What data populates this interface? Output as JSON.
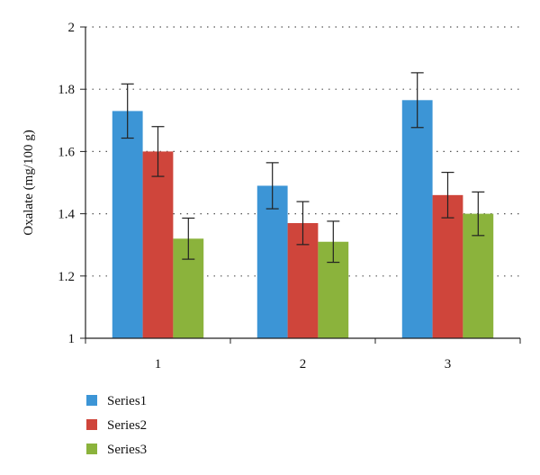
{
  "chart_data": {
    "type": "bar",
    "title": "",
    "xlabel": "",
    "ylabel": "Oxalate (mg/100 g)",
    "ylim": [
      1,
      2
    ],
    "yticks": [
      "1",
      "1.2",
      "1.4",
      "1.6",
      "1.8",
      "2"
    ],
    "categories": [
      "1",
      "2",
      "3"
    ],
    "grid": "horizontal dotted",
    "legend_position": "bottom-left",
    "series": [
      {
        "name": "Series1",
        "color": "#3c95d6",
        "values": [
          1.73,
          1.49,
          1.765
        ],
        "errors": [
          0.087,
          0.074,
          0.088
        ]
      },
      {
        "name": "Series2",
        "color": "#cf453b",
        "values": [
          1.6,
          1.37,
          1.46
        ],
        "errors": [
          0.08,
          0.069,
          0.073
        ]
      },
      {
        "name": "Series3",
        "color": "#8bb33c",
        "values": [
          1.32,
          1.31,
          1.4
        ],
        "errors": [
          0.066,
          0.066,
          0.07
        ]
      }
    ]
  }
}
